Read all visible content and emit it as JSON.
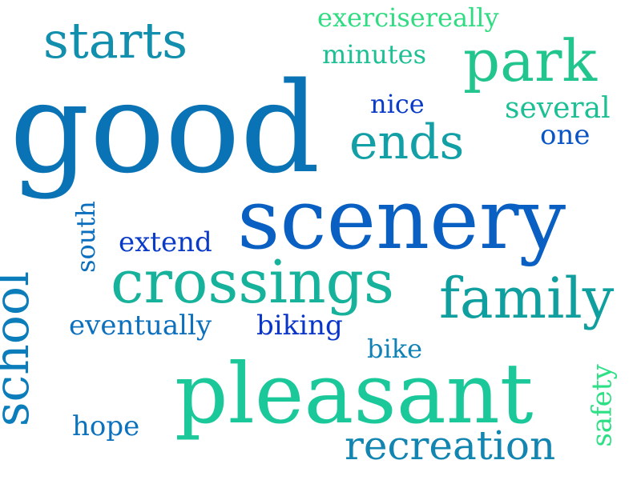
{
  "words": {
    "good": {
      "text": "good",
      "color": "#0a73b5"
    },
    "scenery": {
      "text": "scenery",
      "color": "#0a60c2"
    },
    "pleasant": {
      "text": "pleasant",
      "color": "#1bc89a"
    },
    "crossings": {
      "text": "crossings",
      "color": "#17b29b"
    },
    "family": {
      "text": "family",
      "color": "#0f9f9e"
    },
    "park": {
      "text": "park",
      "color": "#22c58e"
    },
    "starts": {
      "text": "starts",
      "color": "#138fae"
    },
    "ends": {
      "text": "ends",
      "color": "#12a0a6"
    },
    "school": {
      "text": "school",
      "color": "#0c7dbb"
    },
    "recreation": {
      "text": "recreation",
      "color": "#1285b0"
    },
    "exercisereally": {
      "text": "exercisereally",
      "color": "#30dc82"
    },
    "minutes": {
      "text": "minutes",
      "color": "#1dbf95"
    },
    "several": {
      "text": "several",
      "color": "#1dbf95"
    },
    "nice": {
      "text": "nice",
      "color": "#0a3bc8"
    },
    "one": {
      "text": "one",
      "color": "#0a55c5"
    },
    "extend": {
      "text": "extend",
      "color": "#0a3bc8"
    },
    "south": {
      "text": "south",
      "color": "#0c6fbd"
    },
    "eventually": {
      "text": "eventually",
      "color": "#0c70bd"
    },
    "biking": {
      "text": "biking",
      "color": "#0a35c9"
    },
    "bike": {
      "text": "bike",
      "color": "#1082b5"
    },
    "hope": {
      "text": "hope",
      "color": "#0c72bd"
    },
    "safety": {
      "text": "safety",
      "color": "#2ee085"
    }
  }
}
